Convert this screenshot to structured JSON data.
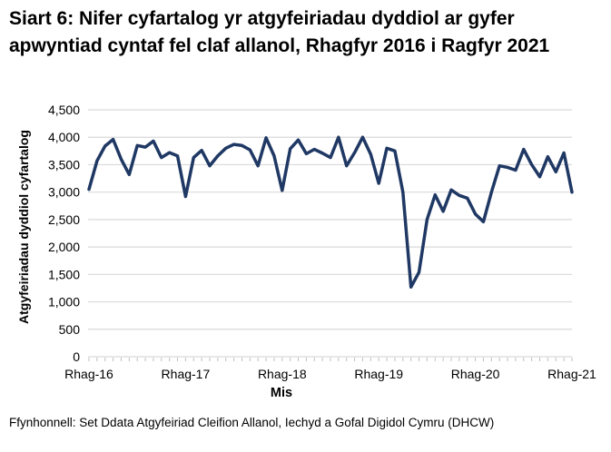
{
  "title": "Siart 6: Nifer cyfartalog yr atgyfeiriadau dyddiol ar gyfer apwyntiad cyntaf fel claf allanol, Rhagfyr 2016 i Ragfyr 2021",
  "footer": {
    "source": "Ffynhonnell: Set Ddata Atgyfeiriad Cleifion Allanol, Iechyd a Gofal Digidol Cymru (DHCW)"
  },
  "colors": {
    "line": "#1f3864",
    "gridline": "#d9d9d9",
    "tick": "#bfbfbf",
    "text": "#000000"
  },
  "chart_data": {
    "type": "line",
    "title": "Siart 6: Nifer cyfartalog yr atgyfeiriadau dyddiol ar gyfer apwyntiad cyntaf fel claf allanol, Rhagfyr 2016 i Ragfyr 2021",
    "xlabel": "Mis",
    "ylabel": "Atgyfeiriadau dyddiol cyfartalog",
    "ylim": [
      0,
      4500
    ],
    "grid": "horizontal",
    "legend": "none",
    "y_ticks": {
      "values": [
        0,
        500,
        1000,
        1500,
        2000,
        2500,
        3000,
        3500,
        4000,
        4500
      ],
      "labels": [
        "0",
        "500",
        "1,000",
        "1,500",
        "2,000",
        "2,500",
        "3,000",
        "3,500",
        "4,000",
        "4,500"
      ]
    },
    "x_year_ticks": {
      "month_indices": [
        0,
        12,
        24,
        36,
        48,
        60
      ],
      "labels": [
        "Rhag-16",
        "Rhag-17",
        "Rhag-18",
        "Rhag-19",
        "Rhag-20",
        "Rhag-21"
      ]
    },
    "series": [
      {
        "name": "Atgyfeiriadau dyddiol cyfartalog",
        "months": [
          "2016-12",
          "2017-01",
          "2017-02",
          "2017-03",
          "2017-04",
          "2017-05",
          "2017-06",
          "2017-07",
          "2017-08",
          "2017-09",
          "2017-10",
          "2017-11",
          "2017-12",
          "2018-01",
          "2018-02",
          "2018-03",
          "2018-04",
          "2018-05",
          "2018-06",
          "2018-07",
          "2018-08",
          "2018-09",
          "2018-10",
          "2018-11",
          "2018-12",
          "2019-01",
          "2019-02",
          "2019-03",
          "2019-04",
          "2019-05",
          "2019-06",
          "2019-07",
          "2019-08",
          "2019-09",
          "2019-10",
          "2019-11",
          "2019-12",
          "2020-01",
          "2020-02",
          "2020-03",
          "2020-04",
          "2020-05",
          "2020-06",
          "2020-07",
          "2020-08",
          "2020-09",
          "2020-10",
          "2020-11",
          "2020-12",
          "2021-01",
          "2021-02",
          "2021-03",
          "2021-04",
          "2021-05",
          "2021-06",
          "2021-07",
          "2021-08",
          "2021-09",
          "2021-10",
          "2021-11",
          "2021-12"
        ],
        "values": [
          3050,
          3570,
          3840,
          3960,
          3600,
          3320,
          3850,
          3820,
          3930,
          3630,
          3720,
          3660,
          2920,
          3630,
          3760,
          3480,
          3660,
          3800,
          3870,
          3850,
          3770,
          3480,
          3990,
          3660,
          3030,
          3790,
          3950,
          3700,
          3780,
          3710,
          3630,
          4000,
          3480,
          3720,
          4000,
          3690,
          3160,
          3800,
          3750,
          3000,
          1270,
          1540,
          2500,
          2950,
          2650,
          3040,
          2940,
          2890,
          2600,
          2460,
          3000,
          3480,
          3450,
          3400,
          3780,
          3500,
          3280,
          3645,
          3370,
          3715,
          3000
        ]
      }
    ]
  }
}
